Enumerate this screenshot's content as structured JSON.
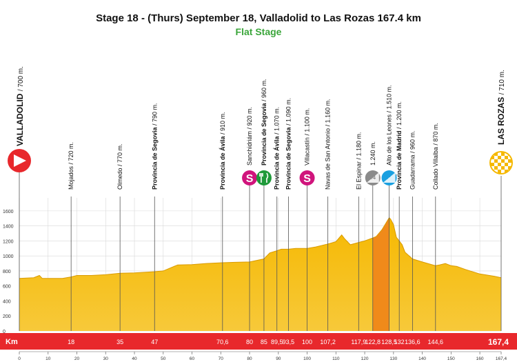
{
  "title": "Stage 18 - (Thurs) September 18, Valladolid to Las Rozas 167.4 km",
  "subtitle": "Flat Stage",
  "colors": {
    "profile": "#f5b800",
    "profile_dark": "#d99a00",
    "climb_band": "#f08a1a",
    "km_bar": "#e8282c",
    "start_flag": "#e8282c",
    "finish_flag": "#f5b800",
    "sprint_icon": "#d0147c",
    "feed_icon": "#1f9a3a",
    "climb_cat3_icon": "#1aa0e0",
    "climb_cat4_icon": "#8a8a8a"
  },
  "start": {
    "name": "VALLADOLID",
    "alt": "/ 700 m."
  },
  "finish": {
    "name": "LAS ROZAS",
    "alt": "/ 710 m."
  },
  "km_axis_label": "Km",
  "waypoints": [
    {
      "km": 18,
      "km_label": "18",
      "name": "Mojados",
      "alt": "/ 720 m.",
      "bold": false
    },
    {
      "km": 35,
      "km_label": "35",
      "name": "Olmedo",
      "alt": "/ 770 m.",
      "bold": false
    },
    {
      "km": 47,
      "km_label": "47",
      "name": "Provincia de Segovia",
      "alt": "/ 790 m.",
      "bold": true
    },
    {
      "km": 70.6,
      "km_label": "70,6",
      "name": "Provincia de Ávila",
      "alt": "/ 910 m.",
      "bold": true
    },
    {
      "km": 80,
      "km_label": "80",
      "name": "Sanchidriám",
      "alt": "/ 920 m.",
      "bold": false,
      "icon": "sprint"
    },
    {
      "km": 85,
      "km_label": "85",
      "name": "Provincia de Segovia",
      "alt": "/ 960 m.",
      "bold": true,
      "icon": "feed"
    },
    {
      "km": 89.5,
      "km_label": "89,5",
      "name": "Provincia de Ávila",
      "alt": "/ 1.070 m.",
      "bold": true
    },
    {
      "km": 93.5,
      "km_label": "93,5",
      "name": "Provincia de Segovia",
      "alt": "/ 1.090 m.",
      "bold": true
    },
    {
      "km": 100,
      "km_label": "100",
      "name": "Villacastín",
      "alt": "/ 1.100 m.",
      "bold": false,
      "icon": "sprint"
    },
    {
      "km": 107.2,
      "km_label": "107,2",
      "name": "Navas de San Antonio",
      "alt": "/ 1.160 m.",
      "bold": false
    },
    {
      "km": 117.9,
      "km_label": "117,9",
      "name": "El Espinar",
      "alt": "/ 1.180 m.",
      "bold": false
    },
    {
      "km": 122.8,
      "km_label": "122,8",
      "name": "",
      "alt": "1.240 m.",
      "bold": false,
      "icon": "cat4",
      "icon_text": "C/4"
    },
    {
      "km": 128.5,
      "km_label": "128,5",
      "name": "Alto de los Leones",
      "alt": "/ 1.510 m.",
      "bold": false,
      "icon": "cat3",
      "icon_text": "3ª"
    },
    {
      "km": 132,
      "km_label": "132",
      "name": "Provincia de Madrid",
      "alt": "/ 1.200 m.",
      "bold": true
    },
    {
      "km": 136.6,
      "km_label": "136,6",
      "name": "Guadarrama",
      "alt": "/ 960 m.",
      "bold": false
    },
    {
      "km": 144.6,
      "km_label": "144,6",
      "name": "Collado Villalba",
      "alt": "/ 870 m.",
      "bold": false
    }
  ],
  "chart_data": {
    "type": "area",
    "title": "Stage 18 - (Thurs) September 18, Valladolid to Las Rozas 167.4 km",
    "subtitle": "Flat Stage",
    "xlabel": "Km",
    "ylabel": "",
    "xlim": [
      0,
      167.4
    ],
    "ylim": [
      0,
      1700
    ],
    "y_ticks": [
      0,
      200,
      400,
      600,
      800,
      1000,
      1200,
      1400,
      1600
    ],
    "x_ticks": [
      0,
      10,
      20,
      30,
      40,
      50,
      60,
      70,
      80,
      90,
      100,
      110,
      120,
      130,
      140,
      150,
      160,
      167.4
    ],
    "x_tick_labels": [
      "0",
      "10",
      "20",
      "30",
      "40",
      "50",
      "60",
      "70",
      "80",
      "90",
      "100",
      "110",
      "120",
      "130",
      "140",
      "150",
      "160",
      "167,4"
    ],
    "grid": true,
    "profile": {
      "x": [
        0,
        5,
        7,
        8,
        10,
        15,
        18,
        20,
        25,
        30,
        35,
        40,
        47,
        50,
        55,
        60,
        65,
        70.6,
        75,
        80,
        85,
        87,
        89.5,
        91,
        93.5,
        96,
        100,
        103,
        107.2,
        110,
        112,
        113,
        115,
        117.9,
        120,
        122.8,
        124,
        126,
        128.5,
        129,
        130,
        131,
        132,
        133,
        134,
        136.6,
        140,
        144.6,
        146,
        148,
        150,
        152,
        155,
        160,
        165,
        167.4
      ],
      "y": [
        700,
        710,
        740,
        700,
        700,
        700,
        720,
        740,
        740,
        750,
        770,
        775,
        790,
        800,
        880,
        885,
        900,
        910,
        915,
        920,
        960,
        1040,
        1070,
        1090,
        1090,
        1100,
        1100,
        1120,
        1160,
        1190,
        1280,
        1230,
        1150,
        1180,
        1200,
        1240,
        1260,
        1350,
        1510,
        1490,
        1420,
        1250,
        1200,
        1150,
        1050,
        960,
        920,
        870,
        880,
        900,
        870,
        860,
        820,
        760,
        730,
        710
      ]
    },
    "climb_band": {
      "from_km": 122.8,
      "to_km": 128.5
    }
  }
}
